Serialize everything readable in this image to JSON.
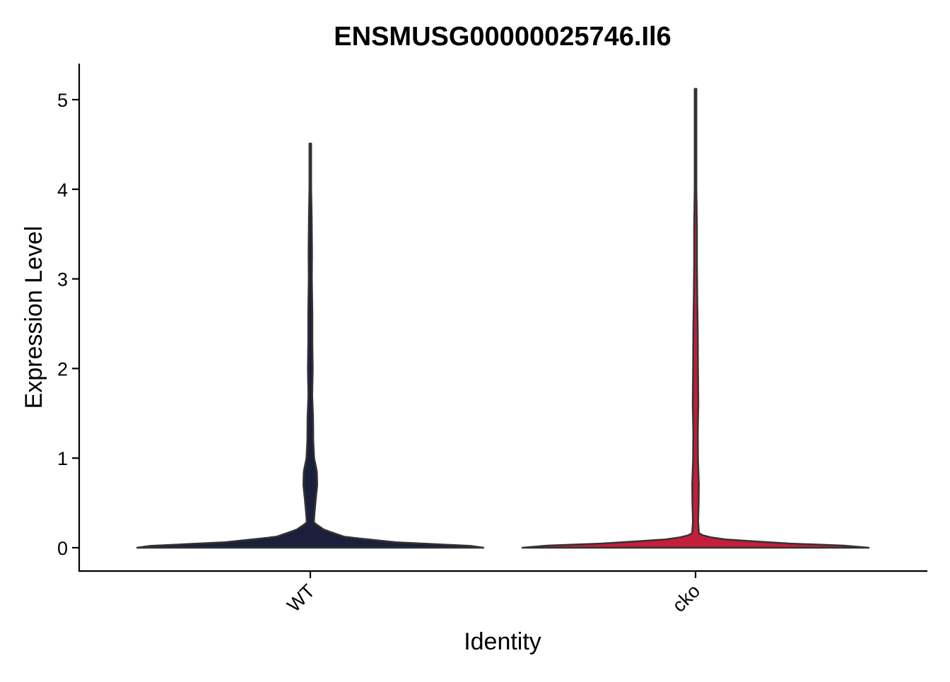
{
  "chart_data": {
    "type": "violin",
    "title": "ENSMUSG00000025746.Il6",
    "xlabel": "Identity",
    "ylabel": "Expression Level",
    "ylim": [
      -0.25,
      5.4
    ],
    "yticks": [
      0,
      1,
      2,
      3,
      4,
      5
    ],
    "grid": false,
    "legend": "none",
    "categories": [
      "WT",
      "cko"
    ],
    "series": [
      {
        "category": "WT",
        "color": "#1b1f3b",
        "max": 4.51,
        "density": [
          [
            0.0,
            1.0
          ],
          [
            0.02,
            0.93
          ],
          [
            0.06,
            0.5
          ],
          [
            0.12,
            0.2
          ],
          [
            0.2,
            0.08
          ],
          [
            0.28,
            0.02
          ],
          [
            0.4,
            0.025
          ],
          [
            0.55,
            0.032
          ],
          [
            0.7,
            0.04
          ],
          [
            0.85,
            0.038
          ],
          [
            1.0,
            0.022
          ],
          [
            1.2,
            0.017
          ],
          [
            1.45,
            0.016
          ],
          [
            1.7,
            0.011
          ],
          [
            2.0,
            0.014
          ],
          [
            2.3,
            0.012
          ],
          [
            2.6,
            0.012
          ],
          [
            3.0,
            0.009
          ],
          [
            3.3,
            0.01
          ],
          [
            3.7,
            0.008
          ],
          [
            4.0,
            0.005
          ],
          [
            4.3,
            0.004
          ],
          [
            4.51,
            0.002
          ]
        ]
      },
      {
        "category": "cko",
        "color": "#c41e3a",
        "max": 5.12,
        "density": [
          [
            0.0,
            1.0
          ],
          [
            0.02,
            0.9
          ],
          [
            0.05,
            0.5
          ],
          [
            0.1,
            0.12
          ],
          [
            0.15,
            0.02
          ],
          [
            0.3,
            0.015
          ],
          [
            0.5,
            0.018
          ],
          [
            0.7,
            0.019
          ],
          [
            1.0,
            0.014
          ],
          [
            1.3,
            0.013
          ],
          [
            1.6,
            0.016
          ],
          [
            2.0,
            0.014
          ],
          [
            2.4,
            0.013
          ],
          [
            2.8,
            0.01
          ],
          [
            3.2,
            0.008
          ],
          [
            3.6,
            0.008
          ],
          [
            4.0,
            0.005
          ],
          [
            4.5,
            0.004
          ],
          [
            4.9,
            0.003
          ],
          [
            5.12,
            0.002
          ]
        ]
      }
    ]
  }
}
